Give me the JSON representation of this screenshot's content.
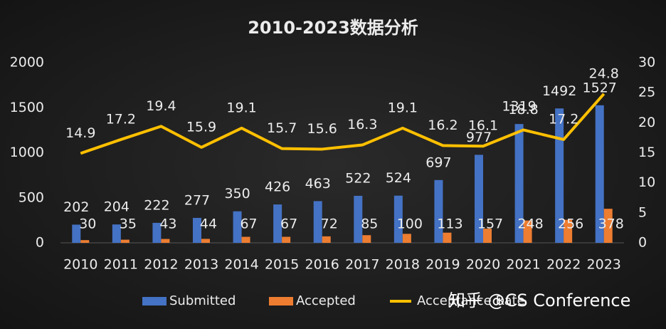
{
  "chart_data": {
    "type": "bar_line",
    "title": "2010-2023数据分析",
    "categories": [
      "2010",
      "2011",
      "2012",
      "2013",
      "2014",
      "2015",
      "2016",
      "2017",
      "2018",
      "2019",
      "2020",
      "2021",
      "2022",
      "2023"
    ],
    "series": [
      {
        "name": "Submitted",
        "color": "#4472c4",
        "type": "bar",
        "values": [
          202,
          204,
          222,
          277,
          350,
          426,
          463,
          522,
          524,
          697,
          977,
          1319,
          1492,
          1527
        ]
      },
      {
        "name": "Accepted",
        "color": "#ed7d31",
        "type": "bar",
        "values": [
          30,
          35,
          43,
          44,
          67,
          67,
          72,
          85,
          100,
          113,
          157,
          248,
          256,
          378
        ]
      },
      {
        "name": "Acceptance Rate",
        "color": "#ffc000",
        "type": "line",
        "axis": "y2",
        "values": [
          14.9,
          17.2,
          19.4,
          15.9,
          19.1,
          15.7,
          15.6,
          16.3,
          19.1,
          16.2,
          16.1,
          18.8,
          17.2,
          24.8
        ]
      }
    ],
    "ylim": [
      0,
      2000
    ],
    "yticks": [
      0,
      500,
      1000,
      1500,
      2000
    ],
    "y2lim": [
      0,
      30
    ],
    "y2ticks": [
      0,
      5,
      10,
      15,
      20,
      25,
      30
    ],
    "grid": false,
    "legend": "bottom",
    "watermark": "知乎 @CS Conference"
  }
}
